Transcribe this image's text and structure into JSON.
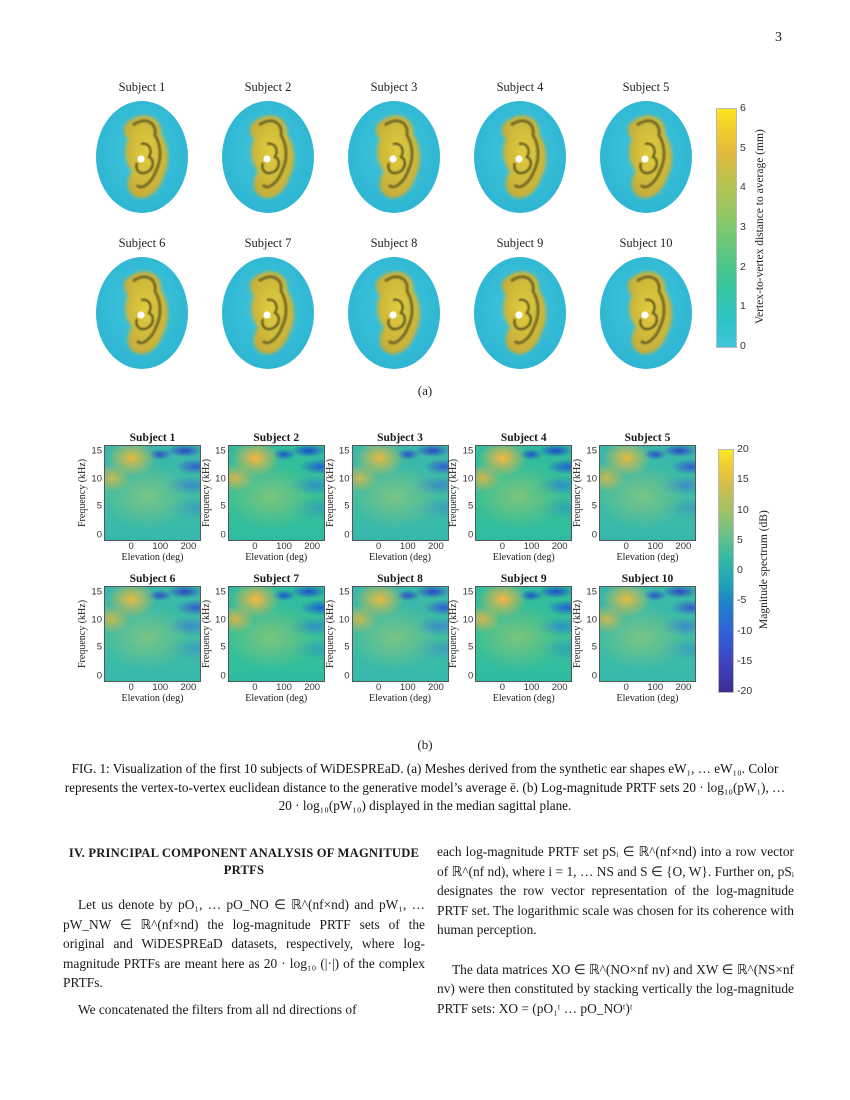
{
  "page": {
    "number": "3"
  },
  "figure_a": {
    "subjects": [
      "Subject 1",
      "Subject 2",
      "Subject 3",
      "Subject 4",
      "Subject 5",
      "Subject 6",
      "Subject 7",
      "Subject 8",
      "Subject 9",
      "Subject 10"
    ],
    "sublabel": "(a)",
    "colorbar": {
      "label": "Vertex-to-vertex distance to average (mm)",
      "ticks": [
        "6",
        "5",
        "4",
        "3",
        "2",
        "1",
        "0"
      ],
      "top_color": "#fbe61e",
      "bottom_color": "#3fc5dc"
    }
  },
  "figure_b": {
    "subjects": [
      "Subject 1",
      "Subject 2",
      "Subject 3",
      "Subject 4",
      "Subject 5",
      "Subject 6",
      "Subject 7",
      "Subject 8",
      "Subject 9",
      "Subject 10"
    ],
    "sublabel": "(b)",
    "xlabel": "Elevation (deg)",
    "ylabel": "Frequency (kHz)",
    "xticks": [
      "0",
      "100",
      "200"
    ],
    "yticks": [
      "15",
      "10",
      "5",
      "0"
    ],
    "colorbar": {
      "label": "Magnitude spectrum (dB)",
      "ticks": [
        "20",
        "15",
        "10",
        "5",
        "0",
        "-5",
        "-10",
        "-15",
        "-20"
      ],
      "top_color": "#f9e921",
      "bottom_color": "#3a2d93"
    }
  },
  "caption": "FIG. 1: Visualization of the first 10 subjects of WiDESPREaD. (a) Meshes derived from the synthetic ear shapes eW₁, … eW₁₀. Color represents the vertex-to-vertex euclidean distance to the generative model’s average ē. (b) Log-magnitude PRTF sets 20 · log₁₀(pW₁), … 20 · log₁₀(pW₁₀) displayed in the median sagittal plane.",
  "section": {
    "heading": "IV.   PRINCIPAL COMPONENT ANALYSIS OF MAGNITUDE PRTFS"
  },
  "left_column": {
    "para1": "Let us denote by pO₁, … pO_NO ∈ ℝ^(nf×nd) and pW₁, … pW_NW ∈ ℝ^(nf×nd) the log-magnitude PRTF sets of the original and WiDESPREaD datasets, respectively, where log-magnitude PRTFs are meant here as 20 · log₁₀ (|·|) of the complex PRTFs.",
    "para2": "We concatenated the filters from all nd directions of"
  },
  "right_column": {
    "para1": "each log-magnitude PRTF set pSᵢ ∈ ℝ^(nf×nd) into a row vector of ℝ^(nf nd), where i = 1, … NS and S ∈ {O, W}. Further on, pSᵢ designates the row vector representation of the log-magnitude PRTF set. The logarithmic scale was chosen for its coherence with human perception.",
    "para2": "The data matrices XO ∈ ℝ^(NO×nf nv) and XW ∈ ℝ^(NS×nf nv) were then constituted by stacking vertically the log-magnitude PRTF sets: XO = (pO₁ᵗ … pO_NOᵗ)ᵗ"
  }
}
